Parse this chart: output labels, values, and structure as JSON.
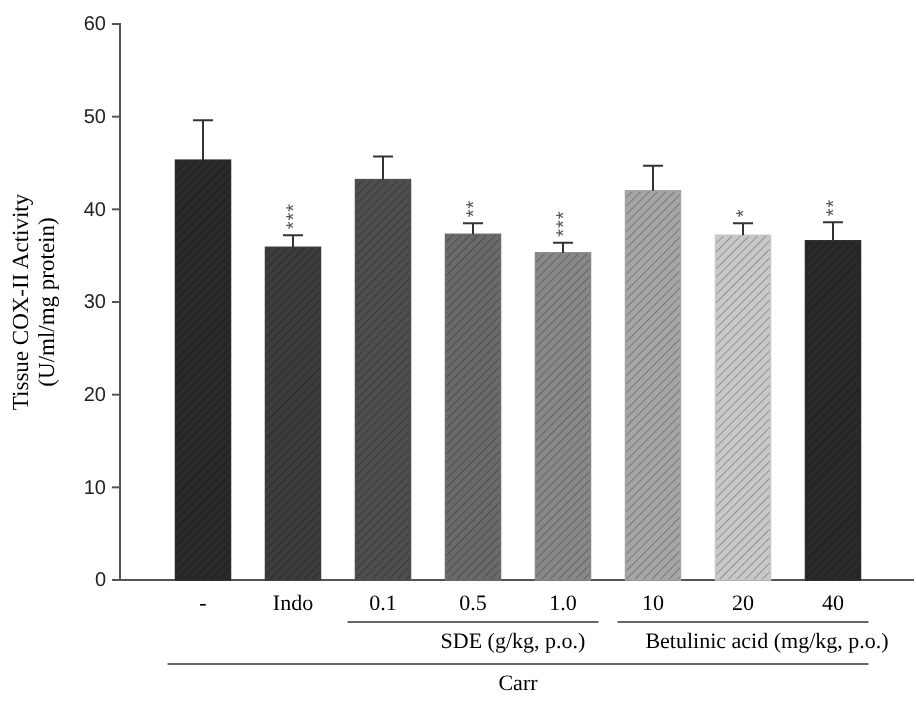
{
  "chart_data": {
    "type": "bar",
    "ylabel": "Tissue COX-II Activity (U/ml/mg protein)",
    "categories": [
      "-",
      "Indo",
      "0.1",
      "0.5",
      "1.0",
      "10",
      "20",
      "40"
    ],
    "values": [
      45.3,
      35.9,
      43.2,
      37.3,
      35.3,
      42.0,
      37.2,
      36.6
    ],
    "errors": [
      [
        45.3,
        49.6
      ],
      [
        35.9,
        37.2
      ],
      [
        43.2,
        45.7
      ],
      [
        37.3,
        38.5
      ],
      [
        35.3,
        36.4
      ],
      [
        42.0,
        44.7
      ],
      [
        37.2,
        38.5
      ],
      [
        36.6,
        38.6
      ]
    ],
    "colors": [
      "#2a2a2a",
      "#3c3c3c",
      "#4e4e4e",
      "#6a6a6a",
      "#888888",
      "#a6a6a6",
      "#c8c8c8",
      "#2a2a2a"
    ],
    "ylim": [
      0,
      60
    ],
    "yticks": [
      0,
      10,
      20,
      30,
      40,
      50,
      60
    ],
    "grid": false,
    "annotations": [
      {
        "text": "***",
        "x": "Indo",
        "y": 37.2
      },
      {
        "text": "**",
        "x": "0.5",
        "y": 38.5
      },
      {
        "text": "***",
        "x": "1.0",
        "y": 36.4
      },
      {
        "text": "*",
        "x": "20",
        "y": 38.5
      },
      {
        "text": "**",
        "x": "40",
        "y": 38.6
      },
      "SDE (g/kg, p.o.)",
      "Betulinic acid (mg/kg, p.o.)",
      "Carr"
    ]
  }
}
